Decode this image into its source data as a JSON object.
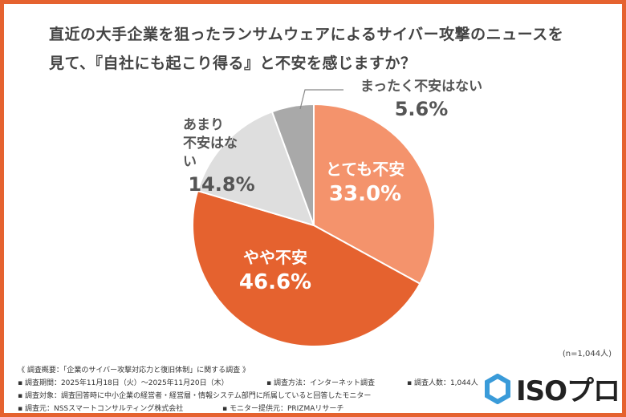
{
  "title_line1": "直近の大手企業を狙ったランサムウェアによるサイバー攻撃のニュースを",
  "title_line2": "見て、『自社にも起こり得る』と不安を感じますか？",
  "chart_data": {
    "type": "pie",
    "start": "top",
    "direction": "clockwise",
    "slices": [
      {
        "label": "とても不安",
        "value": 33.0,
        "display": "33.0%",
        "color": "#F4936C"
      },
      {
        "label": "やや不安",
        "value": 46.6,
        "display": "46.6%",
        "color": "#E5622F"
      },
      {
        "label": "あまり不安はない",
        "label_line1": "あまり",
        "label_line2": "不安はない",
        "value": 14.8,
        "display": "14.8%",
        "color": "#DEDEDE"
      },
      {
        "label": "まったく不安はない",
        "value": 5.6,
        "display": "5.6%",
        "color": "#A9A9A9"
      }
    ]
  },
  "sample": "(n=1,044人)",
  "footer": {
    "overview": "《 調査概要：「企業のサイバー攻撃対応力と復旧体制」に関する調査 》",
    "period": "▪ 調査期間：2025年11月18日（火）〜2025年11月20日（木）",
    "method": "▪ 調査方法：インターネット調査",
    "count": "▪ 調査人数：1,044人",
    "target": "▪ 調査対象：調査回答時に中小企業の経営者・経営層・情報システム部門に所属していると回答したモニター",
    "org": "▪ 調査元：NSSスマートコンサルティング株式会社",
    "provider": "▪ モニター提供元：PRIZMAリサーチ"
  },
  "logo": {
    "text": "ISOプロ",
    "color": "#3A9BD9"
  }
}
